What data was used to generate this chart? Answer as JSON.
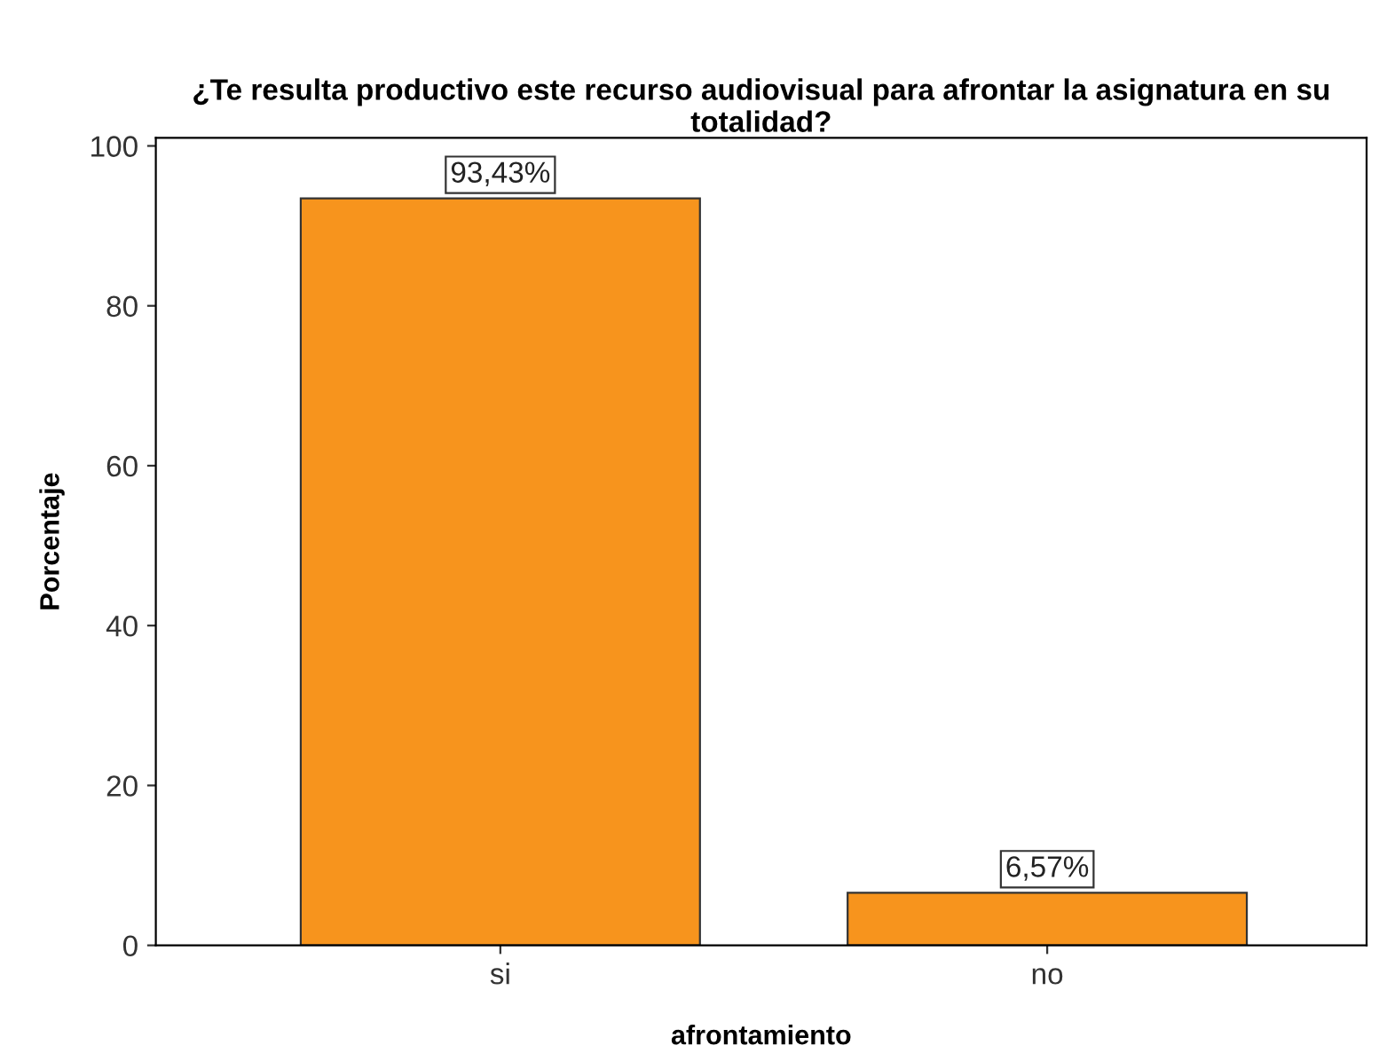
{
  "chart_data": {
    "type": "bar",
    "title": "¿Te resulta productivo este recurso audiovisual para afrontar la asignatura en su totalidad?",
    "xlabel": "afrontamiento",
    "ylabel": "Porcentaje",
    "categories": [
      "si",
      "no"
    ],
    "values": [
      93.43,
      6.57
    ],
    "value_labels": [
      "93,43%",
      "6,57%"
    ],
    "color": "#f7941d",
    "ylim": [
      0,
      101
    ],
    "yticks": [
      0,
      20,
      40,
      60,
      80,
      100
    ],
    "grid": false,
    "legend": false
  }
}
